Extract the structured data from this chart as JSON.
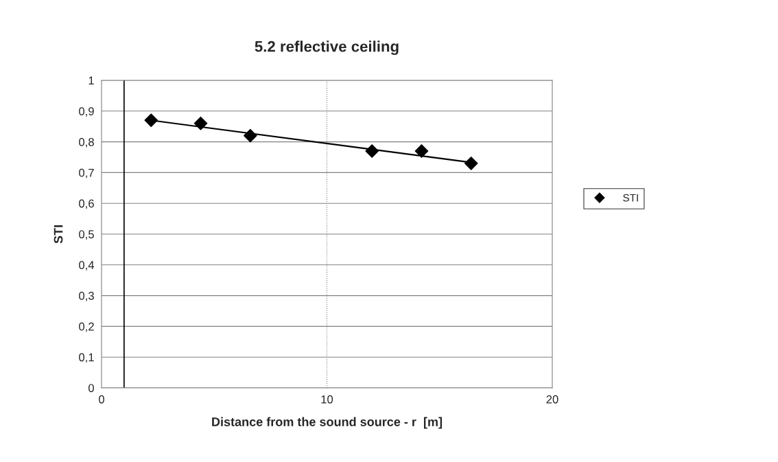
{
  "chart_data": {
    "type": "scatter",
    "title": "5.2 reflective ceiling",
    "xlabel": "Distance from the sound source - r  [m]",
    "ylabel": "STI",
    "xlim": [
      0,
      20
    ],
    "xticks": [
      0,
      10,
      20
    ],
    "ylim": [
      0,
      1
    ],
    "yticks": [
      0,
      {
        "value": 0.1,
        "label": "0,1"
      },
      {
        "value": 0.2,
        "label": "0,2"
      },
      {
        "value": 0.3,
        "label": "0,3"
      },
      {
        "value": 0.4,
        "label": "0,4"
      },
      {
        "value": 0.5,
        "label": "0,5"
      },
      {
        "value": 0.6,
        "label": "0,6"
      },
      {
        "value": 0.7,
        "label": "0,7"
      },
      {
        "value": 0.8,
        "label": "0,8"
      },
      {
        "value": 0.9,
        "label": "0,9"
      },
      1
    ],
    "grid": "y",
    "legend": "right",
    "ref_lines": [
      {
        "axis": "x",
        "value": 1,
        "color": "#000000"
      },
      {
        "axis": "x",
        "value": 10,
        "color": "#808080",
        "line_style": "dotted"
      }
    ],
    "series": [
      {
        "name": "STI",
        "marker": "diamond",
        "color": "#000000",
        "x": [
          2.2,
          4.4,
          6.6,
          12.0,
          14.2,
          16.4
        ],
        "values": [
          0.87,
          0.86,
          0.82,
          0.77,
          0.77,
          0.73
        ]
      },
      {
        "type": "line",
        "marker": "none",
        "color": "#000000",
        "x": [
          2.2,
          16.4
        ],
        "values": [
          0.87,
          0.733
        ]
      }
    ]
  }
}
